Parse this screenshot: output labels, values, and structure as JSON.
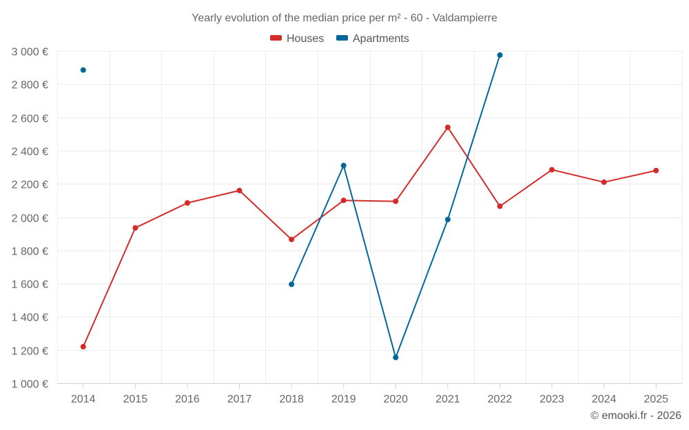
{
  "chart_data": {
    "type": "line",
    "title": "Yearly evolution of the median price per m² - 60 - Valdampierre",
    "xlabel": "",
    "ylabel": "",
    "categories": [
      "2014",
      "2015",
      "2016",
      "2017",
      "2018",
      "2019",
      "2020",
      "2021",
      "2022",
      "2023",
      "2024",
      "2025"
    ],
    "ylim": [
      1000,
      3000
    ],
    "yticks": [
      1000,
      1200,
      1400,
      1600,
      1800,
      2000,
      2200,
      2400,
      2600,
      2800,
      3000
    ],
    "ytick_labels": [
      "1 000 €",
      "1 200 €",
      "1 400 €",
      "1 600 €",
      "1 800 €",
      "2 000 €",
      "2 200 €",
      "2 400 €",
      "2 600 €",
      "2 800 €",
      "3 000 €"
    ],
    "grid": true,
    "legend_position": "top-center",
    "series": [
      {
        "name": "Houses",
        "color": "#d42a2a",
        "values": [
          1220,
          1935,
          2085,
          2160,
          1865,
          2100,
          2095,
          2540,
          2065,
          2285,
          2210,
          2280
        ]
      },
      {
        "name": "Apartments",
        "color": "#006699",
        "values": [
          2885,
          null,
          null,
          null,
          1595,
          2310,
          1155,
          1985,
          2975,
          null,
          null,
          null
        ]
      }
    ]
  },
  "credit": "© emooki.fr - 2026"
}
